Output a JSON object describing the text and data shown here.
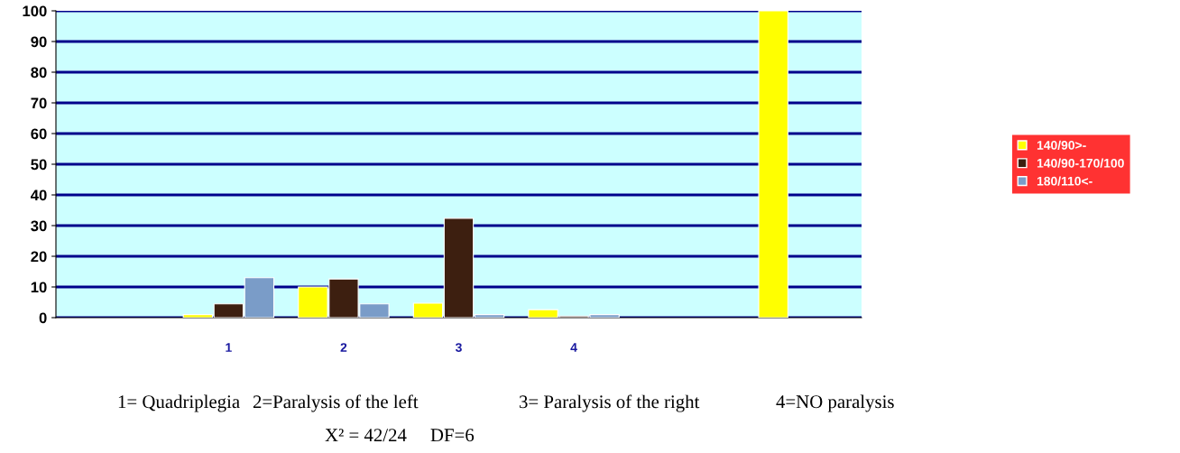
{
  "chart_data": {
    "type": "bar",
    "categories": [
      null,
      "1",
      "2",
      "3",
      "4",
      null,
      null
    ],
    "series": [
      {
        "name": "140/90>-",
        "color": "#ffff00",
        "values": [
          null,
          1,
          10,
          4.7,
          2.6,
          null,
          100
        ]
      },
      {
        "name": "140/90-170/100",
        "color": "#3d1f10",
        "values": [
          null,
          4.5,
          12.6,
          32.4,
          0.5,
          null,
          null
        ]
      },
      {
        "name": "180/110<-",
        "color": "#7a9cc8",
        "values": [
          null,
          13,
          4.5,
          1,
          1,
          null,
          null
        ]
      }
    ],
    "ylim": [
      0,
      100
    ],
    "yticks": [
      0,
      10,
      20,
      30,
      40,
      50,
      60,
      70,
      80,
      90,
      100
    ],
    "grid": "y",
    "legend": "right",
    "annotations": [
      "1= Quadriplegia",
      "2=Paralysis of the left",
      "3= Paralysis of the right",
      "4=NO paralysis",
      "X² = 42/24     DF=6"
    ]
  }
}
